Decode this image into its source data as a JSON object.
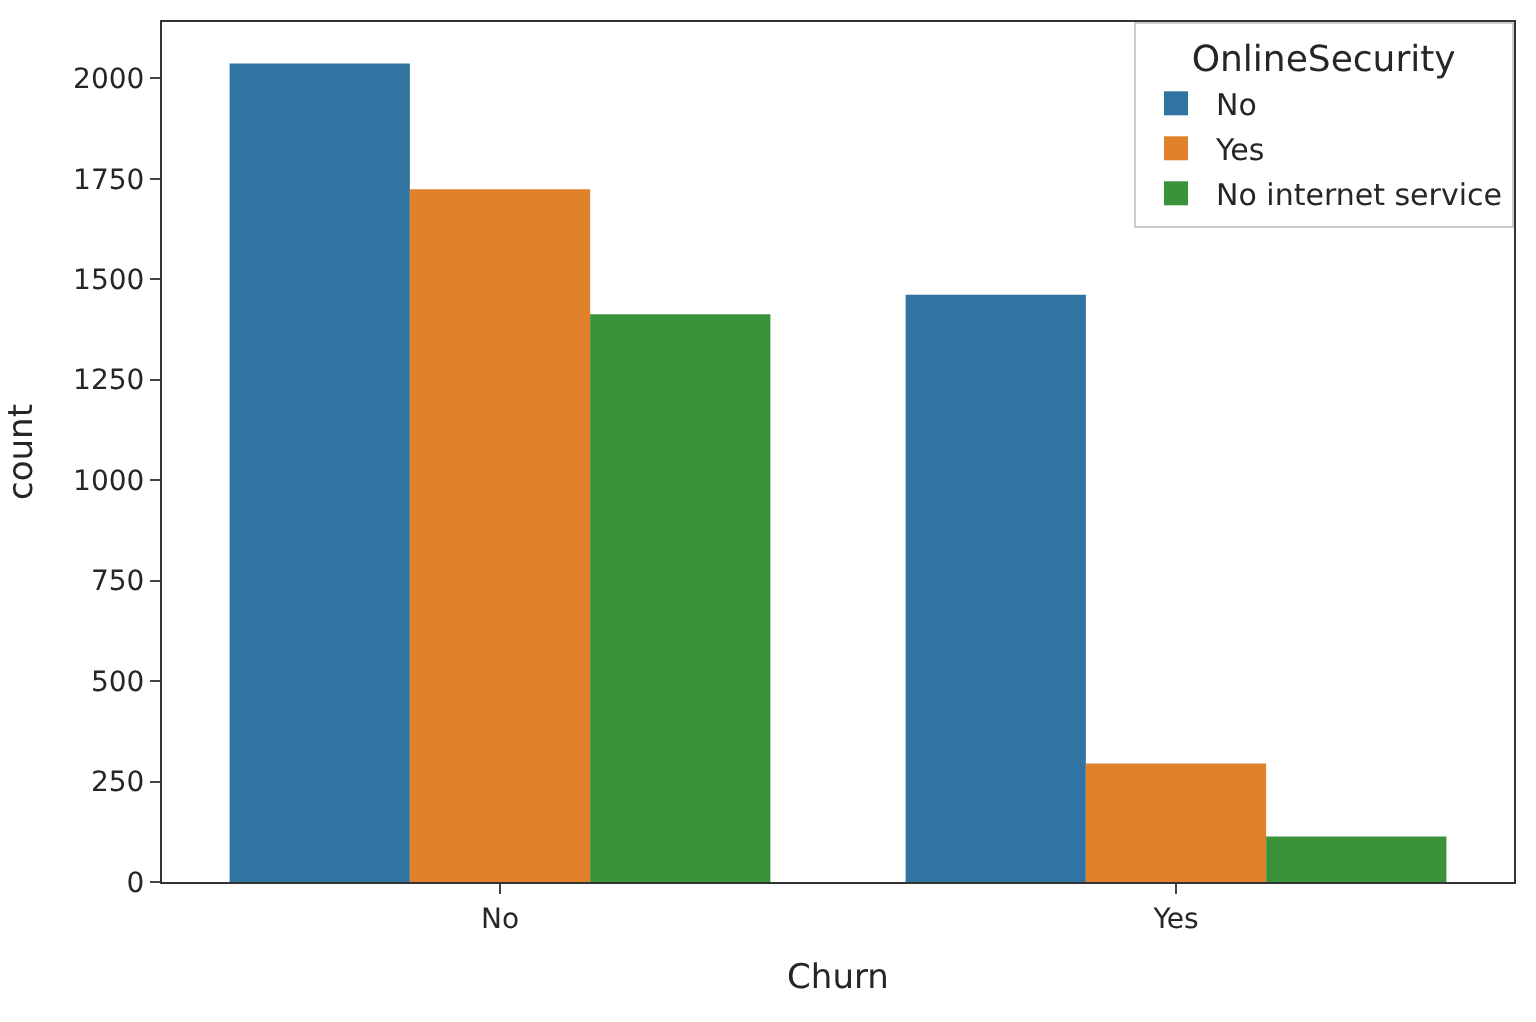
{
  "chart_data": {
    "type": "bar",
    "xlabel": "Churn",
    "ylabel": "count",
    "legend_title": "OnlineSecurity",
    "categories": [
      "No",
      "Yes"
    ],
    "series": [
      {
        "name": "No",
        "color": "#3274a1",
        "values": [
          2037,
          1461
        ]
      },
      {
        "name": "Yes",
        "color": "#e1812c",
        "values": [
          1724,
          295
        ]
      },
      {
        "name": "No internet service",
        "color": "#3a923a",
        "values": [
          1413,
          113
        ]
      }
    ],
    "ylim": [
      0,
      2140
    ],
    "yticks": [
      0,
      250,
      500,
      750,
      1000,
      1250,
      1500,
      1750,
      2000
    ],
    "legend": "top right"
  }
}
